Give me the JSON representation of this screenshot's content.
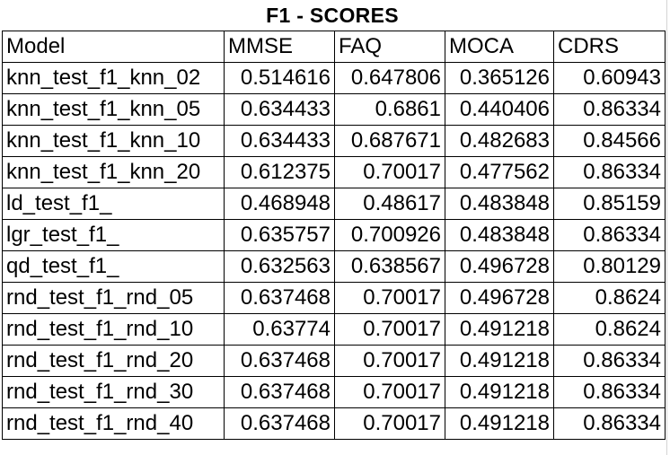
{
  "title": "F1 - SCORES",
  "headers": [
    "Model",
    "MMSE",
    "FAQ",
    "MOCA",
    "CDRS"
  ],
  "rows": [
    [
      "knn_test_f1_knn_02",
      "0.514616",
      "0.647806",
      "0.365126",
      "0.60943"
    ],
    [
      "knn_test_f1_knn_05",
      "0.634433",
      "0.6861",
      "0.440406",
      "0.86334"
    ],
    [
      "knn_test_f1_knn_10",
      "0.634433",
      "0.687671",
      "0.482683",
      "0.84566"
    ],
    [
      "knn_test_f1_knn_20",
      "0.612375",
      "0.70017",
      "0.477562",
      "0.86334"
    ],
    [
      "ld_test_f1_",
      "0.468948",
      "0.48617",
      "0.483848",
      "0.85159"
    ],
    [
      "lgr_test_f1_",
      "0.635757",
      "0.700926",
      "0.483848",
      "0.86334"
    ],
    [
      "qd_test_f1_",
      "0.632563",
      "0.638567",
      "0.496728",
      "0.80129"
    ],
    [
      "rnd_test_f1_rnd_05",
      "0.637468",
      "0.70017",
      "0.496728",
      "0.8624"
    ],
    [
      "rnd_test_f1_rnd_10",
      "0.63774",
      "0.70017",
      "0.491218",
      "0.8624"
    ],
    [
      "rnd_test_f1_rnd_20",
      "0.637468",
      "0.70017",
      "0.491218",
      "0.86334"
    ],
    [
      "rnd_test_f1_rnd_30",
      "0.637468",
      "0.70017",
      "0.491218",
      "0.86334"
    ],
    [
      "rnd_test_f1_rnd_40",
      "0.637468",
      "0.70017",
      "0.491218",
      "0.86334"
    ]
  ]
}
